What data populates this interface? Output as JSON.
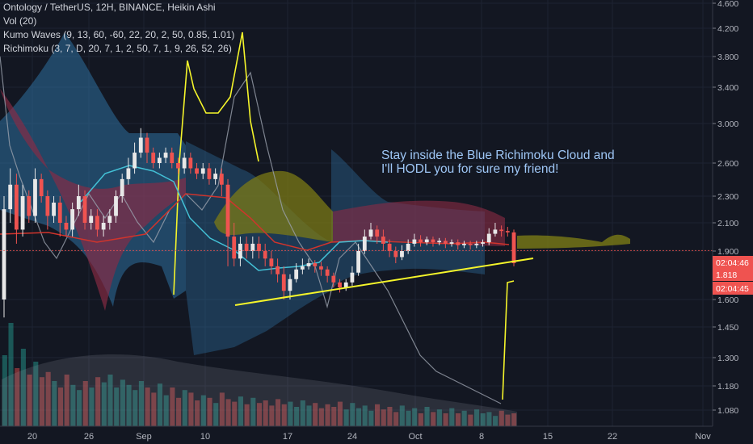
{
  "header": {
    "title": "Ontology / TetherUS, 12H, BINANCE, Heikin Ashi",
    "indicators": [
      "Vol (20)",
      "Kumo Waves (9, 13, 60, -60, 22, 20, 2, 50, 0.85, 1.01)",
      "Richimoku (3, 7, D, 20, 7, 1, 2, 50, 7, 1, 9, 26, 52, 26)"
    ]
  },
  "annotation": {
    "line1": "Stay inside the Blue Richimoku Cloud and",
    "line2": "I'll HODL you for sure my friend!"
  },
  "price_labels": {
    "countdown_top": "02:04:46",
    "last_price": "1.818",
    "countdown_bottom": "02:04:45"
  },
  "colors": {
    "background": "#131722",
    "up_candle": "#e8e8e8",
    "down_candle": "#ef5350",
    "trendline": "#f5f52a",
    "annotation": "#9ec6f5",
    "blue_cloud": "#2e6f9e",
    "red_cloud": "#8c2b45",
    "olive_cloud": "#7b7a16"
  },
  "chart_data": {
    "type": "candlestick",
    "x_tick_labels": [
      "20",
      "26",
      "Sep",
      "10",
      "17",
      "24",
      "Oct",
      "8",
      "15",
      "22",
      "Nov"
    ],
    "y_tick_labels": [
      "4.600",
      "4.200",
      "3.800",
      "3.400",
      "3.000",
      "2.600",
      "2.300",
      "2.100",
      "1.900",
      "1.600",
      "1.450",
      "1.300",
      "1.180",
      "1.080"
    ],
    "y_scale": "log",
    "last_price": 1.818,
    "trendline": [
      {
        "x": "Sep 11",
        "y": 1.6
      },
      {
        "x": "Oct 12",
        "y": 1.85
      }
    ],
    "candles": [
      [
        1.6,
        2.2,
        1.5,
        2.3
      ],
      [
        2.2,
        2.4,
        2.1,
        2.55
      ],
      [
        2.4,
        2.05,
        1.95,
        2.5
      ],
      [
        2.05,
        2.3,
        2.0,
        2.4
      ],
      [
        2.3,
        2.15,
        2.1,
        2.35
      ],
      [
        2.15,
        2.45,
        2.1,
        2.55
      ],
      [
        2.45,
        2.3,
        2.25,
        2.5
      ],
      [
        2.3,
        2.15,
        2.05,
        2.35
      ],
      [
        2.15,
        2.25,
        2.1,
        2.3
      ],
      [
        2.25,
        2.1,
        2.0,
        2.3
      ],
      [
        2.1,
        2.05,
        2.0,
        2.15
      ],
      [
        2.05,
        2.2,
        2.0,
        2.25
      ],
      [
        2.2,
        2.3,
        2.15,
        2.4
      ],
      [
        2.3,
        2.1,
        2.05,
        2.35
      ],
      [
        2.1,
        2.15,
        2.05,
        2.2
      ],
      [
        2.15,
        2.05,
        2.0,
        2.2
      ],
      [
        2.05,
        2.1,
        2.0,
        2.15
      ],
      [
        2.1,
        2.15,
        2.05,
        2.2
      ],
      [
        2.15,
        2.3,
        2.1,
        2.35
      ],
      [
        2.3,
        2.45,
        2.25,
        2.5
      ],
      [
        2.45,
        2.55,
        2.4,
        2.65
      ],
      [
        2.55,
        2.7,
        2.5,
        2.8
      ],
      [
        2.7,
        2.85,
        2.65,
        2.95
      ],
      [
        2.85,
        2.7,
        2.6,
        2.9
      ],
      [
        2.7,
        2.6,
        2.55,
        2.75
      ],
      [
        2.6,
        2.65,
        2.55,
        2.7
      ],
      [
        2.65,
        2.7,
        2.6,
        2.75
      ],
      [
        2.7,
        2.6,
        2.55,
        2.75
      ],
      [
        2.6,
        2.55,
        2.5,
        2.65
      ],
      [
        2.55,
        2.65,
        2.5,
        2.7
      ],
      [
        2.65,
        2.55,
        2.5,
        2.7
      ],
      [
        2.55,
        2.5,
        2.45,
        2.6
      ],
      [
        2.5,
        2.55,
        2.45,
        2.6
      ],
      [
        2.55,
        2.45,
        2.4,
        2.6
      ],
      [
        2.45,
        2.5,
        2.4,
        2.55
      ],
      [
        2.5,
        2.4,
        2.3,
        2.55
      ],
      [
        2.4,
        2.0,
        1.8,
        2.45
      ],
      [
        2.0,
        1.85,
        1.8,
        2.1
      ],
      [
        1.85,
        1.95,
        1.8,
        2.0
      ],
      [
        1.95,
        1.9,
        1.85,
        2.0
      ],
      [
        1.9,
        1.95,
        1.85,
        2.0
      ],
      [
        1.95,
        1.9,
        1.85,
        2.0
      ],
      [
        1.9,
        1.85,
        1.8,
        1.95
      ],
      [
        1.85,
        1.8,
        1.75,
        1.9
      ],
      [
        1.8,
        1.75,
        1.7,
        1.85
      ],
      [
        1.75,
        1.65,
        1.6,
        1.8
      ],
      [
        1.65,
        1.72,
        1.6,
        1.75
      ],
      [
        1.72,
        1.78,
        1.7,
        1.82
      ],
      [
        1.78,
        1.8,
        1.75,
        1.85
      ],
      [
        1.8,
        1.82,
        1.78,
        1.85
      ],
      [
        1.82,
        1.8,
        1.76,
        1.84
      ],
      [
        1.8,
        1.78,
        1.74,
        1.83
      ],
      [
        1.78,
        1.74,
        1.7,
        1.8
      ],
      [
        1.74,
        1.7,
        1.67,
        1.76
      ],
      [
        1.7,
        1.67,
        1.64,
        1.72
      ],
      [
        1.67,
        1.7,
        1.65,
        1.72
      ],
      [
        1.7,
        1.76,
        1.68,
        1.8
      ],
      [
        1.76,
        1.9,
        1.74,
        1.95
      ],
      [
        1.9,
        2.0,
        1.88,
        2.05
      ],
      [
        2.0,
        2.05,
        1.98,
        2.1
      ],
      [
        2.05,
        2.0,
        1.95,
        2.08
      ],
      [
        2.0,
        1.95,
        1.9,
        2.05
      ],
      [
        1.95,
        1.9,
        1.86,
        1.98
      ],
      [
        1.9,
        1.86,
        1.82,
        1.93
      ],
      [
        1.86,
        1.9,
        1.84,
        1.94
      ],
      [
        1.9,
        1.95,
        1.88,
        1.98
      ],
      [
        1.95,
        1.98,
        1.93,
        2.02
      ],
      [
        1.98,
        1.96,
        1.93,
        2.01
      ],
      [
        1.96,
        1.98,
        1.94,
        2.0
      ],
      [
        1.98,
        1.96,
        1.93,
        2.0
      ],
      [
        1.96,
        1.97,
        1.94,
        1.99
      ],
      [
        1.97,
        1.95,
        1.92,
        1.99
      ],
      [
        1.95,
        1.96,
        1.93,
        1.98
      ],
      [
        1.96,
        1.94,
        1.91,
        1.98
      ],
      [
        1.94,
        1.95,
        1.92,
        1.97
      ],
      [
        1.95,
        1.94,
        1.91,
        1.97
      ],
      [
        1.94,
        1.95,
        1.92,
        1.97
      ],
      [
        1.95,
        1.96,
        1.93,
        1.98
      ],
      [
        1.96,
        2.02,
        1.94,
        2.06
      ],
      [
        2.02,
        2.05,
        2.0,
        2.1
      ],
      [
        2.05,
        2.04,
        2.0,
        2.08
      ],
      [
        2.04,
        2.03,
        2.0,
        2.07
      ],
      [
        2.03,
        1.82,
        1.8,
        2.05
      ]
    ],
    "volume_bars": [
      0.55,
      0.8,
      0.45,
      0.6,
      0.4,
      0.5,
      0.38,
      0.42,
      0.35,
      0.3,
      0.4,
      0.32,
      0.28,
      0.35,
      0.3,
      0.38,
      0.34,
      0.4,
      0.3,
      0.36,
      0.32,
      0.28,
      0.35,
      0.3,
      0.26,
      0.33,
      0.24,
      0.3,
      0.22,
      0.28,
      0.26,
      0.2,
      0.24,
      0.22,
      0.18,
      0.26,
      0.21,
      0.19,
      0.23,
      0.17,
      0.22,
      0.18,
      0.2,
      0.16,
      0.21,
      0.17,
      0.19,
      0.15,
      0.2,
      0.16,
      0.18,
      0.14,
      0.17,
      0.15,
      0.19,
      0.13,
      0.18,
      0.14,
      0.16,
      0.12,
      0.17,
      0.13,
      0.15,
      0.11,
      0.16,
      0.12,
      0.14,
      0.1,
      0.15,
      0.11,
      0.13,
      0.1,
      0.14,
      0.1,
      0.12,
      0.09,
      0.13,
      0.1,
      0.11,
      0.08,
      0.12,
      0.09,
      0.1
    ]
  }
}
